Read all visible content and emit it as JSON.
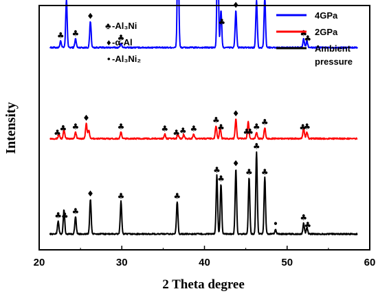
{
  "chart_data": {
    "type": "line",
    "xlabel": "2 Theta degree",
    "ylabel": "Intensity",
    "xlim": [
      20,
      60
    ],
    "xticks": [
      "20",
      "30",
      "40",
      "50",
      "60"
    ],
    "legend_position": "top-right",
    "phase_legend": [
      {
        "symbol": "♣",
        "label": "-Al₃Ni"
      },
      {
        "symbol": "♦",
        "label": "-α-Al"
      },
      {
        "symbol": "•",
        "label": "-Al₃Ni₂"
      }
    ],
    "series": [
      {
        "name": "4GPa",
        "color": "#0000ff",
        "baseline": 0.86,
        "peaks": [
          [
            22.6,
            0.03
          ],
          [
            23.3,
            0.22
          ],
          [
            24.4,
            0.04
          ],
          [
            26.2,
            0.12
          ],
          [
            29.9,
            0.02
          ],
          [
            36.8,
            0.52
          ],
          [
            41.6,
            0.57
          ],
          [
            42.0,
            0.17
          ],
          [
            43.8,
            0.17
          ],
          [
            46.3,
            0.22
          ],
          [
            47.3,
            0.23
          ],
          [
            52.0,
            0.04
          ],
          [
            52.4,
            0.03
          ]
        ],
        "markers": [
          [
            22.6,
            "♣"
          ],
          [
            23.3,
            "♣"
          ],
          [
            24.4,
            "♣"
          ],
          [
            26.2,
            "♦"
          ],
          [
            29.9,
            "♣"
          ],
          [
            36.8,
            "♣"
          ],
          [
            41.6,
            "♣"
          ],
          [
            42.1,
            "♣"
          ],
          [
            43.8,
            "♦"
          ],
          [
            46.3,
            "♣"
          ],
          [
            47.3,
            "♣"
          ],
          [
            52.0,
            "♣"
          ],
          [
            52.5,
            "♣"
          ]
        ]
      },
      {
        "name": "2GPa",
        "color": "#ff0000",
        "baseline": 0.44,
        "peaks": [
          [
            22.4,
            0.02
          ],
          [
            23.0,
            0.04
          ],
          [
            24.4,
            0.03
          ],
          [
            25.7,
            0.07
          ],
          [
            26.0,
            0.04
          ],
          [
            29.9,
            0.03
          ],
          [
            35.2,
            0.02
          ],
          [
            36.8,
            0.02
          ],
          [
            37.5,
            0.02
          ],
          [
            38.7,
            0.02
          ],
          [
            41.4,
            0.06
          ],
          [
            41.9,
            0.05
          ],
          [
            43.8,
            0.09
          ],
          [
            45.3,
            0.08
          ],
          [
            46.3,
            0.03
          ],
          [
            47.3,
            0.05
          ],
          [
            52.0,
            0.05
          ],
          [
            52.4,
            0.03
          ]
        ],
        "markers": [
          [
            22.2,
            "♣"
          ],
          [
            22.9,
            "♣"
          ],
          [
            24.4,
            "♣"
          ],
          [
            25.7,
            "♦"
          ],
          [
            29.9,
            "♣"
          ],
          [
            35.2,
            "♣"
          ],
          [
            36.6,
            "♣"
          ],
          [
            37.4,
            "♣"
          ],
          [
            38.7,
            "♣"
          ],
          [
            41.4,
            "♣"
          ],
          [
            42.0,
            "♣"
          ],
          [
            43.8,
            "♦"
          ],
          [
            45.1,
            "♣"
          ],
          [
            45.5,
            "♣"
          ],
          [
            46.3,
            "♣"
          ],
          [
            47.3,
            "♣"
          ],
          [
            51.9,
            "♣"
          ],
          [
            52.4,
            "♣"
          ]
        ]
      },
      {
        "name": "Ambient pressure",
        "color": "#000000",
        "baseline": 0.0,
        "peaks": [
          [
            22.3,
            0.06
          ],
          [
            23.0,
            0.11
          ],
          [
            24.4,
            0.08
          ],
          [
            26.2,
            0.16
          ],
          [
            29.9,
            0.15
          ],
          [
            36.7,
            0.15
          ],
          [
            41.5,
            0.27
          ],
          [
            42.0,
            0.23
          ],
          [
            43.8,
            0.3
          ],
          [
            45.4,
            0.26
          ],
          [
            46.3,
            0.38
          ],
          [
            47.3,
            0.26
          ],
          [
            48.6,
            0.02
          ],
          [
            52.0,
            0.05
          ],
          [
            52.4,
            0.03
          ]
        ],
        "markers": [
          [
            22.3,
            "♣"
          ],
          [
            23.1,
            "♣"
          ],
          [
            24.4,
            "♣"
          ],
          [
            26.2,
            "♦"
          ],
          [
            29.9,
            "♣"
          ],
          [
            36.7,
            "♣"
          ],
          [
            41.5,
            "♣"
          ],
          [
            42.0,
            "♣"
          ],
          [
            43.8,
            "♦"
          ],
          [
            45.4,
            "♣"
          ],
          [
            46.3,
            "♣"
          ],
          [
            47.3,
            "♣"
          ],
          [
            48.6,
            "•"
          ],
          [
            52.0,
            "♣"
          ],
          [
            52.5,
            "♣"
          ]
        ]
      }
    ]
  }
}
